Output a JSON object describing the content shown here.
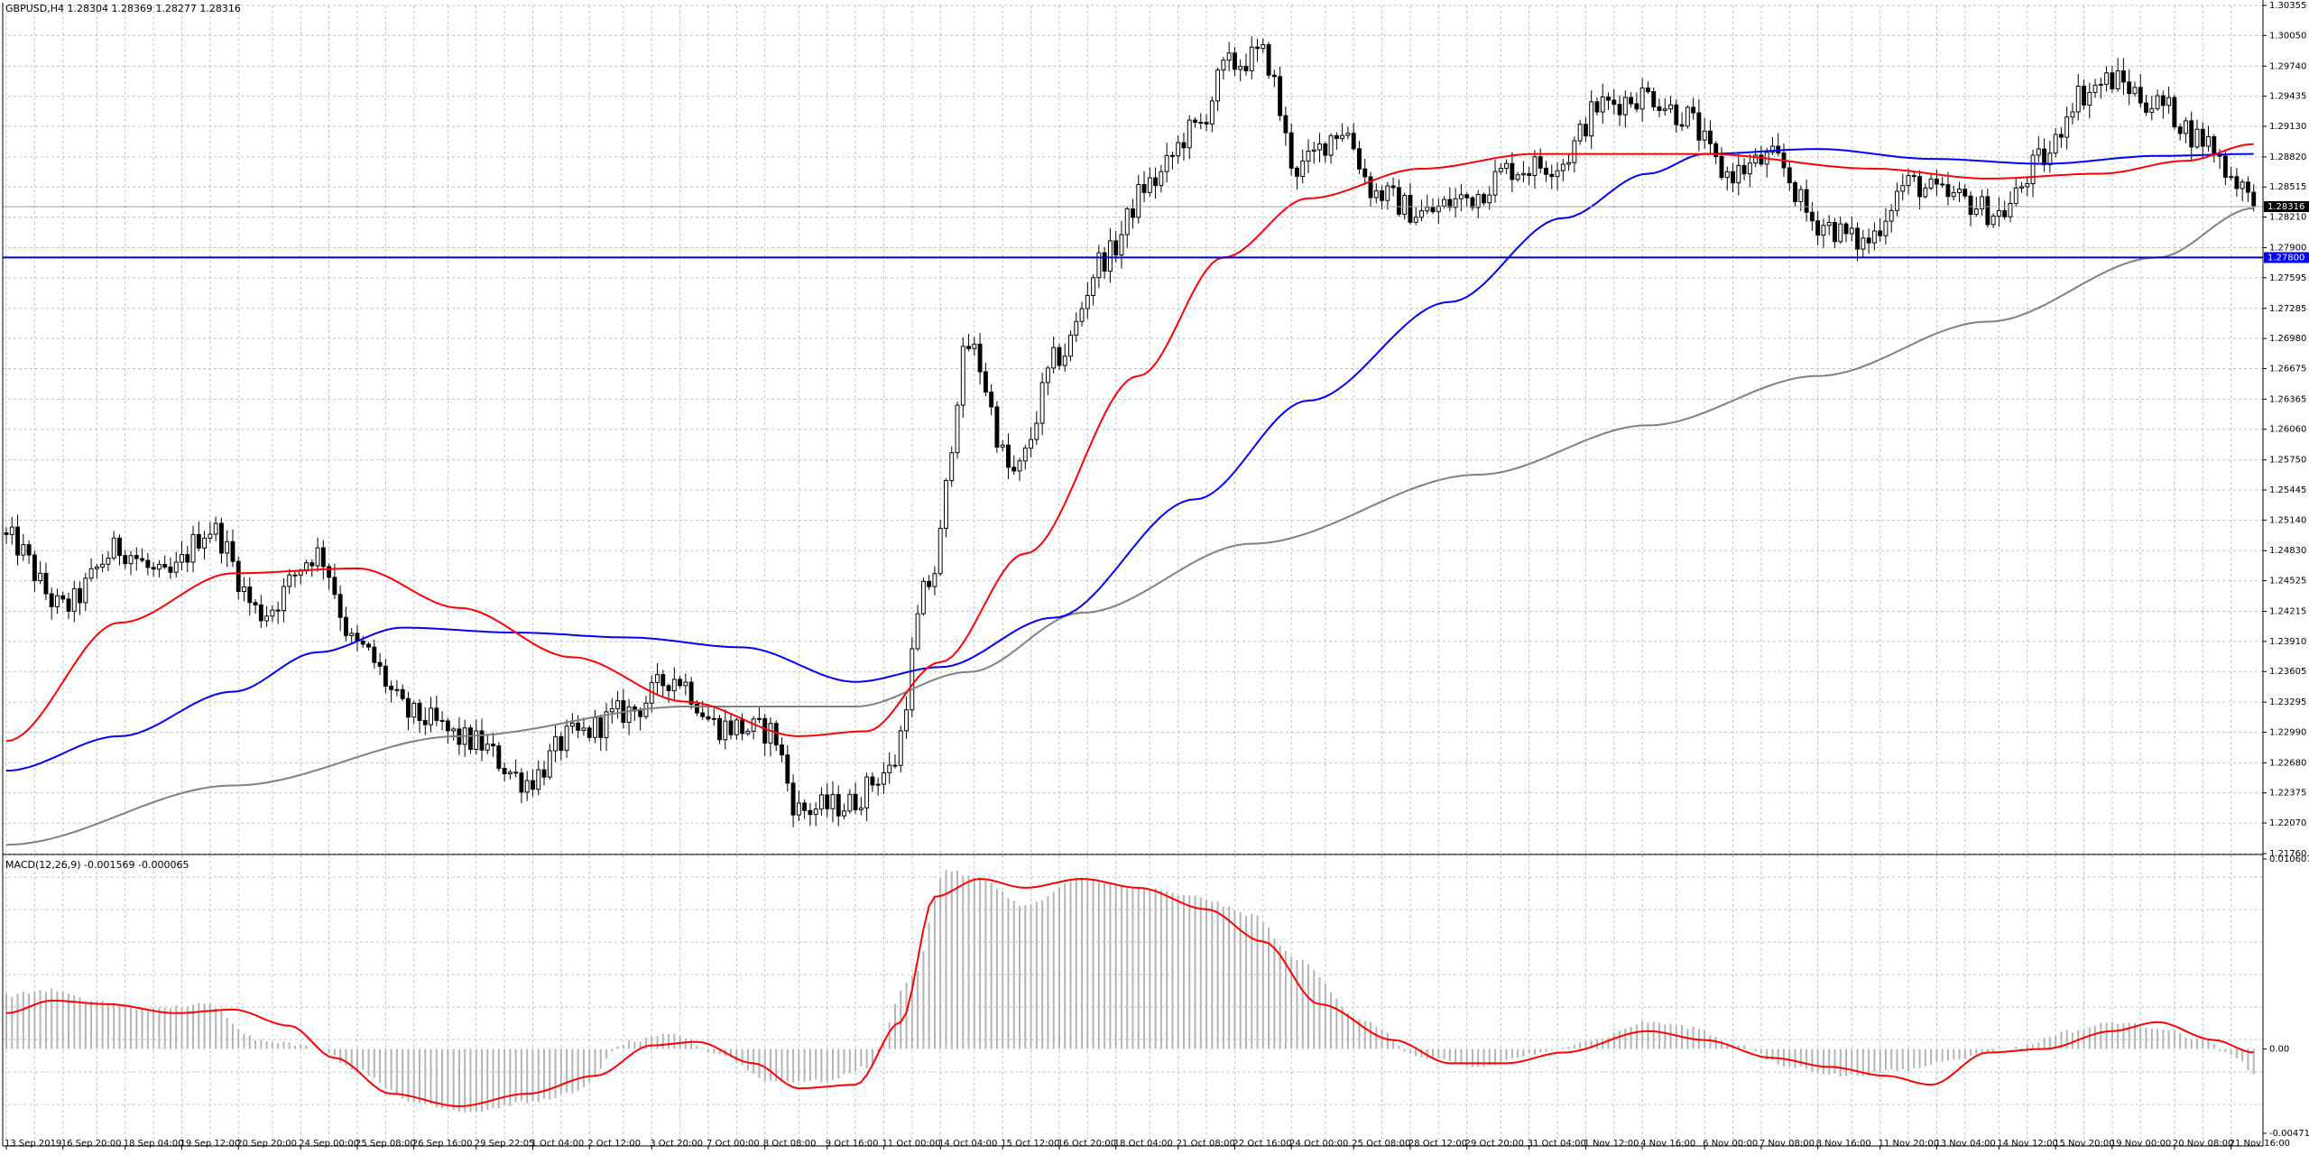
{
  "window": {
    "header": "GBPUSD,H4  1.28304 1.28369 1.28277 1.28316",
    "macd_header": "MACD(12,26,9) -0.001569 -0.000065"
  },
  "colors": {
    "background": "#ffffff",
    "grid": "#c0c0c0",
    "ma_fast": "#ff0000",
    "ma_mid": "#0000ff",
    "ma_slow": "#808080",
    "hline": "#0000c8",
    "price_label": "#000000",
    "macd_hist": "#b4b4b4",
    "macd_signal": "#ff0000"
  },
  "chart_data": [
    {
      "type": "candlestick",
      "symbol": "GBPUSD",
      "timeframe": "H4",
      "ohlc_header": [
        1.28304,
        1.28369,
        1.28277,
        1.28316
      ],
      "ylim": [
        1.2176,
        1.30355
      ],
      "y_ticks": [
        "1.30355",
        "1.30050",
        "1.29740",
        "1.29435",
        "1.29130",
        "1.28820",
        "1.28515",
        "1.28210",
        "1.27900",
        "1.27595",
        "1.27285",
        "1.26980",
        "1.26675",
        "1.26365",
        "1.26060",
        "1.25750",
        "1.25445",
        "1.25140",
        "1.24830",
        "1.24525",
        "1.24215",
        "1.23910",
        "1.23605",
        "1.23295",
        "1.22990",
        "1.22680",
        "1.22375",
        "1.22070",
        "1.21760"
      ],
      "current_price": "1.28316",
      "horizontal_line": {
        "value": 1.278,
        "label": "1.27800"
      },
      "x_labels": [
        "13 Sep 2019",
        "16 Sep 20:00",
        "18 Sep 04:00",
        "19 Sep 12:00",
        "20 Sep 20:00",
        "24 Sep 00:00",
        "25 Sep 08:00",
        "26 Sep 16:00",
        "29 Sep 22:05",
        "1 Oct 04:00",
        "2 Oct 12:00",
        "3 Oct 20:00",
        "7 Oct 00:00",
        "8 Oct 08:00",
        "9 Oct 16:00",
        "11 Oct 00:00",
        "14 Oct 04:00",
        "15 Oct 12:00",
        "16 Oct 20:00",
        "18 Oct 04:00",
        "21 Oct 08:00",
        "22 Oct 16:00",
        "24 Oct 00:00",
        "25 Oct 08:00",
        "28 Oct 12:00",
        "29 Oct 20:00",
        "31 Oct 04:00",
        "1 Nov 12:00",
        "4 Nov 16:00",
        "6 Nov 00:00",
        "7 Nov 08:00",
        "8 Nov 16:00",
        "11 Nov 20:00",
        "13 Nov 04:00",
        "14 Nov 12:00",
        "15 Nov 20:00",
        "19 Nov 00:00",
        "20 Nov 08:00",
        "21 Nov 16:00"
      ],
      "close_anchors": [
        [
          0,
          1.2495
        ],
        [
          10,
          1.2425
        ],
        [
          20,
          1.2485
        ],
        [
          28,
          1.2455
        ],
        [
          36,
          1.2505
        ],
        [
          45,
          1.242
        ],
        [
          55,
          1.248
        ],
        [
          62,
          1.2385
        ],
        [
          72,
          1.2315
        ],
        [
          82,
          1.229
        ],
        [
          92,
          1.225
        ],
        [
          100,
          1.2295
        ],
        [
          110,
          1.232
        ],
        [
          118,
          1.2355
        ],
        [
          126,
          1.2305
        ],
        [
          135,
          1.23
        ],
        [
          140,
          1.222
        ],
        [
          148,
          1.2225
        ],
        [
          156,
          1.226
        ],
        [
          163,
          1.245
        ],
        [
          170,
          1.269
        ],
        [
          178,
          1.256
        ],
        [
          186,
          1.268
        ],
        [
          194,
          1.278
        ],
        [
          202,
          1.2855
        ],
        [
          210,
          1.291
        ],
        [
          216,
          1.2975
        ],
        [
          222,
          1.2985
        ],
        [
          228,
          1.287
        ],
        [
          236,
          1.291
        ],
        [
          242,
          1.2845
        ],
        [
          250,
          1.2825
        ],
        [
          258,
          1.284
        ],
        [
          266,
          1.287
        ],
        [
          274,
          1.2875
        ],
        [
          282,
          1.2935
        ],
        [
          290,
          1.2945
        ],
        [
          296,
          1.2925
        ],
        [
          304,
          1.2865
        ],
        [
          312,
          1.288
        ],
        [
          320,
          1.2815
        ],
        [
          328,
          1.2795
        ],
        [
          336,
          1.2855
        ],
        [
          344,
          1.284
        ],
        [
          352,
          1.2825
        ],
        [
          360,
          1.288
        ],
        [
          366,
          1.2945
        ],
        [
          372,
          1.296
        ],
        [
          380,
          1.2935
        ],
        [
          388,
          1.29
        ],
        [
          394,
          1.286
        ],
        [
          397,
          1.283
        ]
      ],
      "ma_fast": {
        "period_label": "",
        "anchors": [
          [
            0,
            1.229
          ],
          [
            20,
            1.241
          ],
          [
            40,
            1.246
          ],
          [
            62,
            1.2465
          ],
          [
            80,
            1.2425
          ],
          [
            100,
            1.2375
          ],
          [
            120,
            1.233
          ],
          [
            140,
            1.2295
          ],
          [
            152,
            1.23
          ],
          [
            165,
            1.237
          ],
          [
            180,
            1.248
          ],
          [
            200,
            1.266
          ],
          [
            215,
            1.278
          ],
          [
            230,
            1.284
          ],
          [
            250,
            1.287
          ],
          [
            270,
            1.2885
          ],
          [
            300,
            1.2885
          ],
          [
            330,
            1.287
          ],
          [
            350,
            1.286
          ],
          [
            370,
            1.2865
          ],
          [
            385,
            1.2878
          ],
          [
            397,
            1.2895
          ]
        ]
      },
      "ma_mid": {
        "period_label": "",
        "anchors": [
          [
            0,
            1.226
          ],
          [
            20,
            1.2295
          ],
          [
            40,
            1.234
          ],
          [
            55,
            1.238
          ],
          [
            70,
            1.2405
          ],
          [
            90,
            1.24
          ],
          [
            110,
            1.2395
          ],
          [
            130,
            1.2385
          ],
          [
            150,
            1.235
          ],
          [
            165,
            1.2365
          ],
          [
            185,
            1.2415
          ],
          [
            210,
            1.2535
          ],
          [
            230,
            1.2635
          ],
          [
            255,
            1.2735
          ],
          [
            275,
            1.282
          ],
          [
            290,
            1.2865
          ],
          [
            300,
            1.2885
          ],
          [
            320,
            1.289
          ],
          [
            340,
            1.288
          ],
          [
            360,
            1.2875
          ],
          [
            380,
            1.2883
          ],
          [
            397,
            1.2885
          ]
        ]
      },
      "ma_slow": {
        "period_label": "",
        "anchors": [
          [
            0,
            1.2185
          ],
          [
            40,
            1.2245
          ],
          [
            80,
            1.2295
          ],
          [
            120,
            1.2325
          ],
          [
            150,
            1.2325
          ],
          [
            170,
            1.236
          ],
          [
            190,
            1.242
          ],
          [
            220,
            1.249
          ],
          [
            260,
            1.256
          ],
          [
            290,
            1.261
          ],
          [
            320,
            1.266
          ],
          [
            350,
            1.2715
          ],
          [
            380,
            1.278
          ],
          [
            397,
            1.283
          ]
        ]
      }
    },
    {
      "type": "histogram+line",
      "indicator": "MACD(12,26,9)",
      "values_header": [
        -0.001569,
        -6.5e-05
      ],
      "ylim": [
        -0.004711,
        0.010607
      ],
      "y_ticks": [
        "0.010607",
        "0.00",
        "-0.004711"
      ],
      "hist_anchors": [
        [
          0,
          0.003
        ],
        [
          8,
          0.0033
        ],
        [
          15,
          0.0027
        ],
        [
          25,
          0.0022
        ],
        [
          35,
          0.0025
        ],
        [
          45,
          0.0005
        ],
        [
          55,
          0.0001
        ],
        [
          62,
          -0.0012
        ],
        [
          72,
          -0.003
        ],
        [
          82,
          -0.0035
        ],
        [
          92,
          -0.003
        ],
        [
          100,
          -0.0025
        ],
        [
          110,
          0.0004
        ],
        [
          118,
          0.0008
        ],
        [
          126,
          -0.0003
        ],
        [
          135,
          -0.0018
        ],
        [
          145,
          -0.0018
        ],
        [
          152,
          -0.001
        ],
        [
          160,
          0.004
        ],
        [
          166,
          0.01
        ],
        [
          172,
          0.0095
        ],
        [
          180,
          0.008
        ],
        [
          190,
          0.0095
        ],
        [
          200,
          0.009
        ],
        [
          210,
          0.0085
        ],
        [
          220,
          0.0075
        ],
        [
          228,
          0.005
        ],
        [
          240,
          0.0015
        ],
        [
          250,
          -0.0005
        ],
        [
          260,
          -0.001
        ],
        [
          270,
          -0.0003
        ],
        [
          280,
          0.0005
        ],
        [
          290,
          0.0015
        ],
        [
          298,
          0.0012
        ],
        [
          305,
          0.0003
        ],
        [
          315,
          -0.001
        ],
        [
          325,
          -0.0015
        ],
        [
          335,
          -0.0012
        ],
        [
          345,
          -0.0005
        ],
        [
          355,
          0.0001
        ],
        [
          365,
          0.001
        ],
        [
          372,
          0.0015
        ],
        [
          380,
          0.0012
        ],
        [
          388,
          0.0005
        ],
        [
          394,
          -0.0005
        ],
        [
          397,
          -0.0015
        ]
      ],
      "signal_anchors": [
        [
          0,
          0.002
        ],
        [
          8,
          0.0027
        ],
        [
          18,
          0.0025
        ],
        [
          30,
          0.002
        ],
        [
          40,
          0.0022
        ],
        [
          50,
          0.0013
        ],
        [
          58,
          -0.0005
        ],
        [
          68,
          -0.0025
        ],
        [
          80,
          -0.0032
        ],
        [
          92,
          -0.0025
        ],
        [
          104,
          -0.0015
        ],
        [
          114,
          0.0002
        ],
        [
          122,
          0.0004
        ],
        [
          132,
          -0.0008
        ],
        [
          140,
          -0.0022
        ],
        [
          150,
          -0.002
        ],
        [
          158,
          0.0015
        ],
        [
          164,
          0.0085
        ],
        [
          172,
          0.0095
        ],
        [
          180,
          0.009
        ],
        [
          190,
          0.0095
        ],
        [
          200,
          0.009
        ],
        [
          212,
          0.0078
        ],
        [
          222,
          0.006
        ],
        [
          232,
          0.0025
        ],
        [
          245,
          0.0005
        ],
        [
          255,
          -0.0008
        ],
        [
          265,
          -0.0008
        ],
        [
          275,
          -0.0002
        ],
        [
          290,
          0.001
        ],
        [
          300,
          0.0005
        ],
        [
          312,
          -0.0005
        ],
        [
          322,
          -0.001
        ],
        [
          332,
          -0.0015
        ],
        [
          340,
          -0.002
        ],
        [
          350,
          -0.0002
        ],
        [
          360,
          0.0
        ],
        [
          372,
          0.001
        ],
        [
          380,
          0.0015
        ],
        [
          390,
          0.0005
        ],
        [
          397,
          -0.0002
        ]
      ]
    }
  ]
}
